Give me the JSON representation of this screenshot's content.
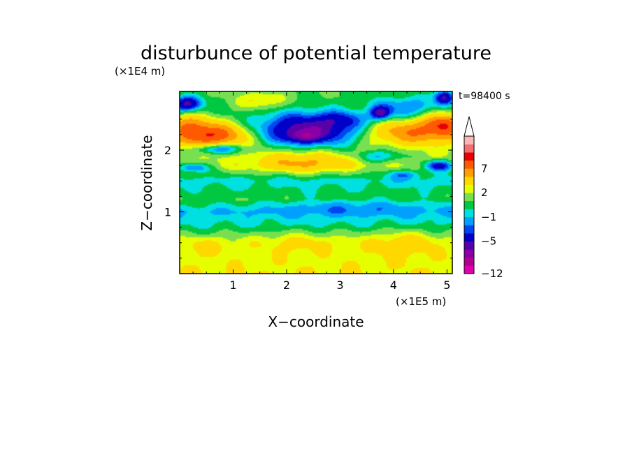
{
  "chart_data": {
    "type": "heatmap",
    "title": "disturbunce of potential temperature",
    "time_label": "t=98400 s",
    "xlabel": "X−coordinate",
    "ylabel": "Z−coordinate",
    "x_unit": "(×1E5 m)",
    "y_unit": "(×1E4 m)",
    "xlim": [
      0,
      5.1
    ],
    "ylim": [
      0,
      2.95
    ],
    "xticks": [
      {
        "value": 1,
        "label": "1"
      },
      {
        "value": 2,
        "label": "2"
      },
      {
        "value": 3,
        "label": "3"
      },
      {
        "value": 4,
        "label": "4"
      },
      {
        "value": 5,
        "label": "5"
      }
    ],
    "yticks": [
      {
        "value": 1,
        "label": "1"
      },
      {
        "value": 2,
        "label": "2"
      }
    ],
    "colorbar": {
      "levels": [
        -12,
        -10,
        -8,
        -6.5,
        -5,
        -3,
        -2,
        -1,
        0,
        1,
        2,
        3,
        5,
        7,
        9,
        11,
        13
      ],
      "colors": [
        "#e000b0",
        "#b40090",
        "#8a00a6",
        "#5a00aa",
        "#0000c8",
        "#0046f0",
        "#00a0ff",
        "#00e0e0",
        "#00c840",
        "#78e050",
        "#e6ff00",
        "#ffd800",
        "#ff9e00",
        "#ff5a00",
        "#e80000",
        "#f27070",
        "#f8b8b8"
      ],
      "extend": "max",
      "tick_labels": [
        {
          "value": -12,
          "label": "−12"
        },
        {
          "value": -5,
          "label": "−5"
        },
        {
          "value": -1,
          "label": "−1"
        },
        {
          "value": 2,
          "label": "2"
        },
        {
          "value": 7,
          "label": "7"
        }
      ]
    },
    "field": {
      "base": [
        [
          0.0,
          3.0
        ],
        [
          0.25,
          2.6
        ],
        [
          0.55,
          1.8
        ],
        [
          0.78,
          0.0
        ],
        [
          1.0,
          -1.0
        ],
        [
          1.2,
          1.0
        ],
        [
          1.5,
          -0.5
        ],
        [
          1.75,
          2.0
        ],
        [
          2.2,
          1.5
        ],
        [
          2.6,
          0.8
        ],
        [
          2.95,
          1.0
        ]
      ],
      "features": [
        {
          "x": 2.5,
          "y": 2.33,
          "sx": 0.75,
          "sy": 0.18,
          "a": -7.5
        },
        {
          "x": 2.3,
          "y": 2.22,
          "sx": 0.22,
          "sy": 0.07,
          "a": -3.5
        },
        {
          "x": 3.0,
          "y": 2.5,
          "sx": 0.3,
          "sy": 0.08,
          "a": -2.0
        },
        {
          "x": 0.55,
          "y": 2.25,
          "sx": 0.5,
          "sy": 0.14,
          "a": 8.0
        },
        {
          "x": 0.15,
          "y": 2.45,
          "sx": 0.25,
          "sy": 0.1,
          "a": 3.5
        },
        {
          "x": 2.3,
          "y": 1.8,
          "sx": 0.65,
          "sy": 0.12,
          "a": 3.5
        },
        {
          "x": 4.4,
          "y": 2.3,
          "sx": 0.75,
          "sy": 0.14,
          "a": 6.0
        },
        {
          "x": 4.95,
          "y": 2.45,
          "sx": 0.25,
          "sy": 0.12,
          "a": 5.0
        },
        {
          "x": 3.75,
          "y": 1.9,
          "sx": 0.3,
          "sy": 0.07,
          "a": -3.0
        },
        {
          "x": 0.15,
          "y": 2.75,
          "sx": 0.18,
          "sy": 0.08,
          "a": -6.5
        },
        {
          "x": 0.7,
          "y": 2.02,
          "sx": 0.3,
          "sy": 0.06,
          "a": -5.0
        },
        {
          "x": 0.25,
          "y": 1.72,
          "sx": 0.2,
          "sy": 0.05,
          "a": -4.0
        },
        {
          "x": 4.85,
          "y": 1.75,
          "sx": 0.18,
          "sy": 0.06,
          "a": -6.0
        },
        {
          "x": 4.95,
          "y": 2.85,
          "sx": 0.12,
          "sy": 0.08,
          "a": -6.5
        },
        {
          "x": 3.75,
          "y": 2.6,
          "sx": 0.12,
          "sy": 0.07,
          "a": -6.0
        },
        {
          "x": 4.2,
          "y": 2.7,
          "sx": 0.4,
          "sy": 0.12,
          "a": -3.0
        },
        {
          "x": 1.5,
          "y": 2.8,
          "sx": 0.3,
          "sy": 0.1,
          "a": 2.5
        },
        {
          "x": 4.2,
          "y": 1.6,
          "sx": 0.2,
          "sy": 0.05,
          "a": -2.5
        },
        {
          "x": 3.3,
          "y": 1.1,
          "sx": 1.2,
          "sy": 0.1,
          "a": -1.5
        },
        {
          "x": 4.2,
          "y": 0.5,
          "sx": 0.5,
          "sy": 0.15,
          "a": 2.0
        },
        {
          "x": 2.2,
          "y": 0.5,
          "sx": 0.6,
          "sy": 0.12,
          "a": 1.5
        },
        {
          "x": 0.5,
          "y": 0.45,
          "sx": 0.3,
          "sy": 0.1,
          "a": 1.5
        }
      ]
    }
  }
}
